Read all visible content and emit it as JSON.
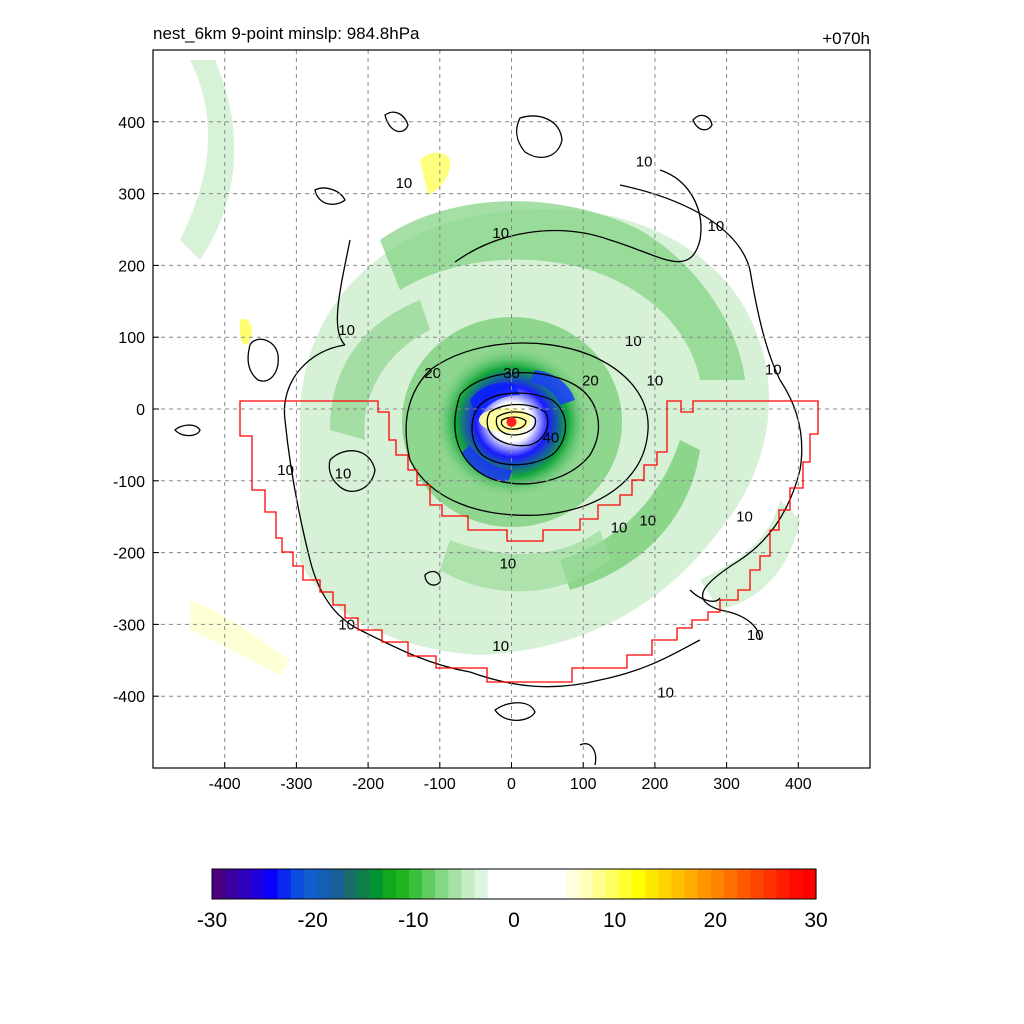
{
  "chart_data": {
    "type": "heatmap",
    "title": "nest_6km  9-point minslp: 984.8hPa",
    "time_label": "+070h",
    "xlim": [
      -500,
      500
    ],
    "ylim": [
      -500,
      500
    ],
    "x_ticks": [
      -400,
      -300,
      -200,
      -100,
      0,
      100,
      200,
      300,
      400
    ],
    "y_ticks": [
      400,
      300,
      200,
      100,
      0,
      -100,
      -200,
      -300,
      -400
    ],
    "grid": true,
    "center": {
      "x": 0,
      "y": -18,
      "color": "#ff2020"
    },
    "contour_labels": [
      {
        "text": "10",
        "x": -150,
        "y": 315
      },
      {
        "text": "10",
        "x": -15,
        "y": 245
      },
      {
        "text": "10",
        "x": 185,
        "y": 345
      },
      {
        "text": "10",
        "x": 285,
        "y": 255
      },
      {
        "text": "10",
        "x": -230,
        "y": 110
      },
      {
        "text": "10",
        "x": 170,
        "y": 95
      },
      {
        "text": "10",
        "x": 200,
        "y": 40
      },
      {
        "text": "10",
        "x": 365,
        "y": 55
      },
      {
        "text": "10",
        "x": -315,
        "y": -85
      },
      {
        "text": "10",
        "x": -235,
        "y": -90
      },
      {
        "text": "10",
        "x": 150,
        "y": -165
      },
      {
        "text": "10",
        "x": 190,
        "y": -155
      },
      {
        "text": "10",
        "x": 325,
        "y": -150
      },
      {
        "text": "10",
        "x": -5,
        "y": -215
      },
      {
        "text": "10",
        "x": -230,
        "y": -300
      },
      {
        "text": "10",
        "x": -15,
        "y": -330
      },
      {
        "text": "10",
        "x": 215,
        "y": -395
      },
      {
        "text": "10",
        "x": 340,
        "y": -315
      },
      {
        "text": "20",
        "x": -110,
        "y": 50
      },
      {
        "text": "20",
        "x": 110,
        "y": 40
      },
      {
        "text": "30",
        "x": 0,
        "y": 50
      },
      {
        "text": "40",
        "x": 55,
        "y": -40
      }
    ],
    "colorbar": {
      "ticks": [
        -30,
        -20,
        -10,
        0,
        10,
        20,
        30
      ],
      "range": [
        -30,
        30
      ],
      "colors": [
        "#4b0082",
        "#3c00a0",
        "#2d00bf",
        "#1e00df",
        "#0a00ff",
        "#0a28f0",
        "#0a4ce0",
        "#0f5fd0",
        "#135fb4",
        "#185f98",
        "#1a6c6c",
        "#0e7f4a",
        "#039432",
        "#12a81e",
        "#1fb51f",
        "#3cbf3c",
        "#60cb60",
        "#84d784",
        "#a6e2a6",
        "#c6edc6",
        "#dff5df",
        "#ffffff",
        "#ffffff",
        "#ffffff",
        "#ffffff",
        "#ffffff",
        "#ffffff",
        "#ffffe0",
        "#ffffb8",
        "#ffff90",
        "#ffff60",
        "#ffff30",
        "#ffff00",
        "#ffe800",
        "#ffd400",
        "#ffc000",
        "#ffab00",
        "#ff9600",
        "#ff8200",
        "#ff6e00",
        "#ff5a00",
        "#ff4600",
        "#ff3200",
        "#ff1e00",
        "#ff0a00",
        "#ff0000"
      ]
    }
  }
}
